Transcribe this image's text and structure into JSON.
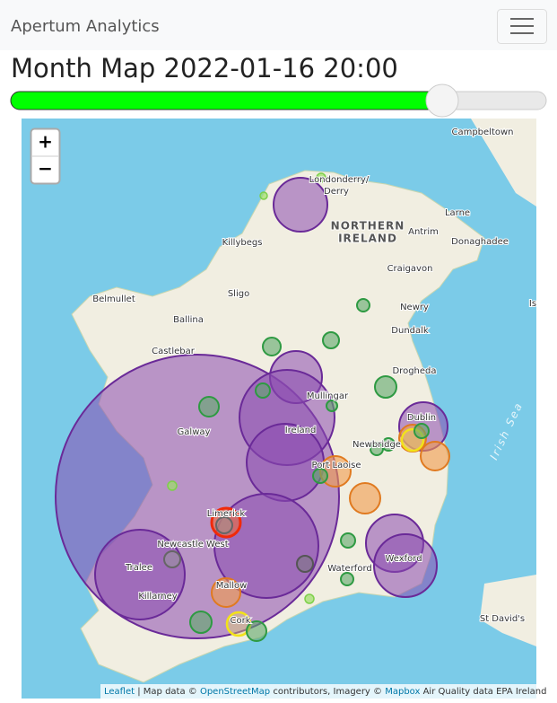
{
  "navbar": {
    "brand": "Apertum Analytics"
  },
  "title": "Month Map 2022-01-16 20:00",
  "map": {
    "zoom_in": "+",
    "zoom_out": "−",
    "labels": [
      "Campbeltown",
      "Londonderry/",
      "Derry",
      "NORTHERN",
      "IRELAND",
      "Larne",
      "Antrim",
      "Donaghadee",
      "Killybegs",
      "Craigavon",
      "Belmullet",
      "Sligo",
      "Newry",
      "Ballina",
      "Dundalk",
      "Castlebar",
      "Drogheda",
      "Mullingar",
      "Galway",
      "Ireland",
      "Dublin",
      "Newbridge",
      "Port Laoise",
      "Limerick",
      "Newcastle West",
      "Tralee",
      "Killarney",
      "Waterford",
      "Wexford",
      "Mallow",
      "Cork",
      "St David's",
      "Irish Sea",
      "Is"
    ],
    "attribution": [
      "Leaflet",
      " | Map data © ",
      "OpenStreetMap",
      " contributors, Imagery © ",
      "Mapbox",
      " Air Quality data EPA Ireland"
    ]
  }
}
